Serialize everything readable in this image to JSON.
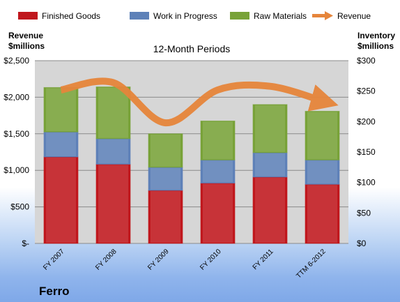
{
  "colors": {
    "finished_goods": "#c0171d",
    "work_in_progress": "#5e81b8",
    "raw_materials": "#78a238",
    "revenue": "#e6853b",
    "plot_bg": "#d6d6d6"
  },
  "chart_data": {
    "type": "bar",
    "stacked": true,
    "title": "12-Month Periods",
    "company": "Ferro",
    "left_axis_label": [
      "Revenue",
      "$millions"
    ],
    "right_axis_label": [
      "Inventory",
      "$millions"
    ],
    "categories": [
      "FY 2007",
      "FY 2008",
      "FY 2009",
      "FY 2010",
      "FY 2011",
      "TTM 6-2012"
    ],
    "series": [
      {
        "name": "Finished Goods",
        "axis": "right",
        "values": [
          142,
          130,
          87,
          99,
          109,
          97
        ]
      },
      {
        "name": "Work in Progress",
        "axis": "right",
        "values": [
          41,
          42,
          38,
          38,
          40,
          40
        ]
      },
      {
        "name": "Raw Materials",
        "axis": "right",
        "values": [
          73,
          85,
          55,
          64,
          79,
          80
        ]
      },
      {
        "name": "Revenue",
        "axis": "left",
        "type": "line",
        "values": [
          2100,
          2200,
          1650,
          2100,
          2150,
          1950
        ]
      }
    ],
    "left_ylim": [
      0,
      2500
    ],
    "right_ylim": [
      0,
      300
    ],
    "left_ticks": [
      "$-",
      "$500",
      "$1,000",
      "$1,500",
      "$2,000",
      "$2,500"
    ],
    "right_ticks": [
      "$0",
      "$50",
      "$100",
      "$150",
      "$200",
      "$250",
      "$300"
    ],
    "grid": true,
    "legend_position": "top"
  }
}
